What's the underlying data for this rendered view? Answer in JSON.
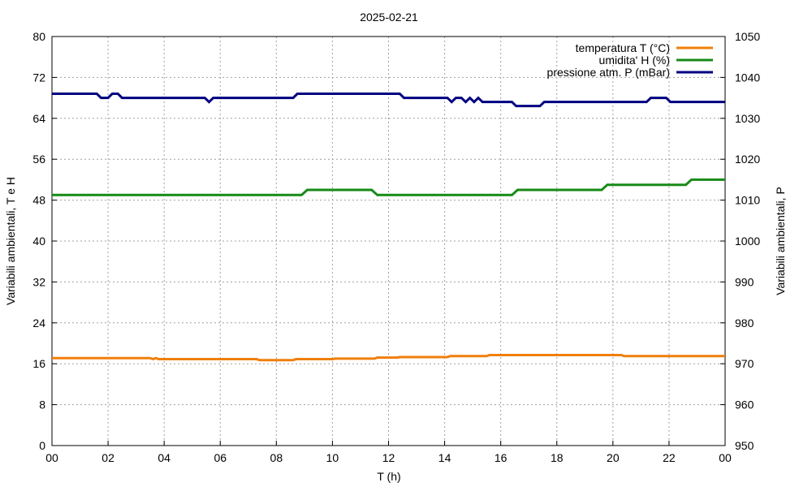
{
  "chart_data": {
    "type": "line",
    "title": "2025-02-21",
    "x_label": "T (h)",
    "y_label": "Variabili ambientali, T e H",
    "y2_label": "Variabili ambientali, P",
    "xlim": [
      0,
      24
    ],
    "ylim": [
      0,
      80
    ],
    "y2lim": [
      950,
      1050
    ],
    "xticks": [
      {
        "value": 0,
        "label": "00"
      },
      {
        "value": 2,
        "label": "02"
      },
      {
        "value": 4,
        "label": "04"
      },
      {
        "value": 6,
        "label": "06"
      },
      {
        "value": 8,
        "label": "08"
      },
      10,
      12,
      14,
      16,
      18,
      20,
      22,
      {
        "value": 24,
        "label": "00"
      }
    ],
    "yticks": [
      0,
      8,
      16,
      24,
      32,
      40,
      48,
      56,
      64,
      72,
      80
    ],
    "y2ticks": [
      950,
      960,
      970,
      980,
      990,
      1000,
      1010,
      1020,
      1030,
      1040,
      1050
    ],
    "grid": true,
    "legend": "top-right",
    "series": [
      {
        "name": "temperatura T (°C)",
        "color": "#f07f0c",
        "x": [
          0,
          3.5,
          3.6,
          3.7,
          3.8,
          7.3,
          7.4,
          8.6,
          8.7,
          10,
          10.1,
          11.5,
          11.6,
          12.3,
          12.4,
          14.1,
          14.2,
          15.5,
          15.6,
          20.3,
          20.4,
          24
        ],
        "values": [
          17.1,
          17.1,
          16.9,
          17.1,
          16.9,
          16.9,
          16.7,
          16.7,
          16.9,
          16.9,
          17.0,
          17.0,
          17.2,
          17.2,
          17.3,
          17.3,
          17.5,
          17.5,
          17.7,
          17.7,
          17.5,
          17.5
        ]
      },
      {
        "name": "umidita' H (%)",
        "color": "#178a17",
        "x": [
          0,
          8.9,
          9.1,
          11.4,
          11.6,
          16.4,
          16.6,
          19.6,
          19.8,
          22.6,
          22.8,
          24
        ],
        "values": [
          49,
          49,
          50,
          50,
          49,
          49,
          50,
          50,
          51,
          51,
          52,
          52
        ]
      },
      {
        "name": "pressione atm. P (mBar)",
        "color": "#000080",
        "axis": "y2",
        "x": [
          0,
          1.6,
          1.75,
          2.0,
          2.15,
          2.35,
          2.5,
          5.45,
          5.6,
          5.75,
          8.6,
          8.75,
          12.4,
          12.55,
          14.1,
          14.25,
          14.4,
          14.6,
          14.75,
          14.9,
          15.05,
          15.2,
          15.35,
          15.45,
          16.4,
          16.55,
          17.4,
          17.55,
          21.2,
          21.35,
          21.9,
          22.05,
          24
        ],
        "values": [
          1036,
          1036,
          1035,
          1035,
          1036,
          1036,
          1035,
          1035,
          1034,
          1035,
          1035,
          1036,
          1036,
          1035,
          1035,
          1034,
          1035,
          1035,
          1034,
          1035,
          1034,
          1035,
          1034,
          1034,
          1034,
          1033,
          1033,
          1034,
          1034,
          1035,
          1035,
          1034,
          1034
        ]
      }
    ]
  }
}
